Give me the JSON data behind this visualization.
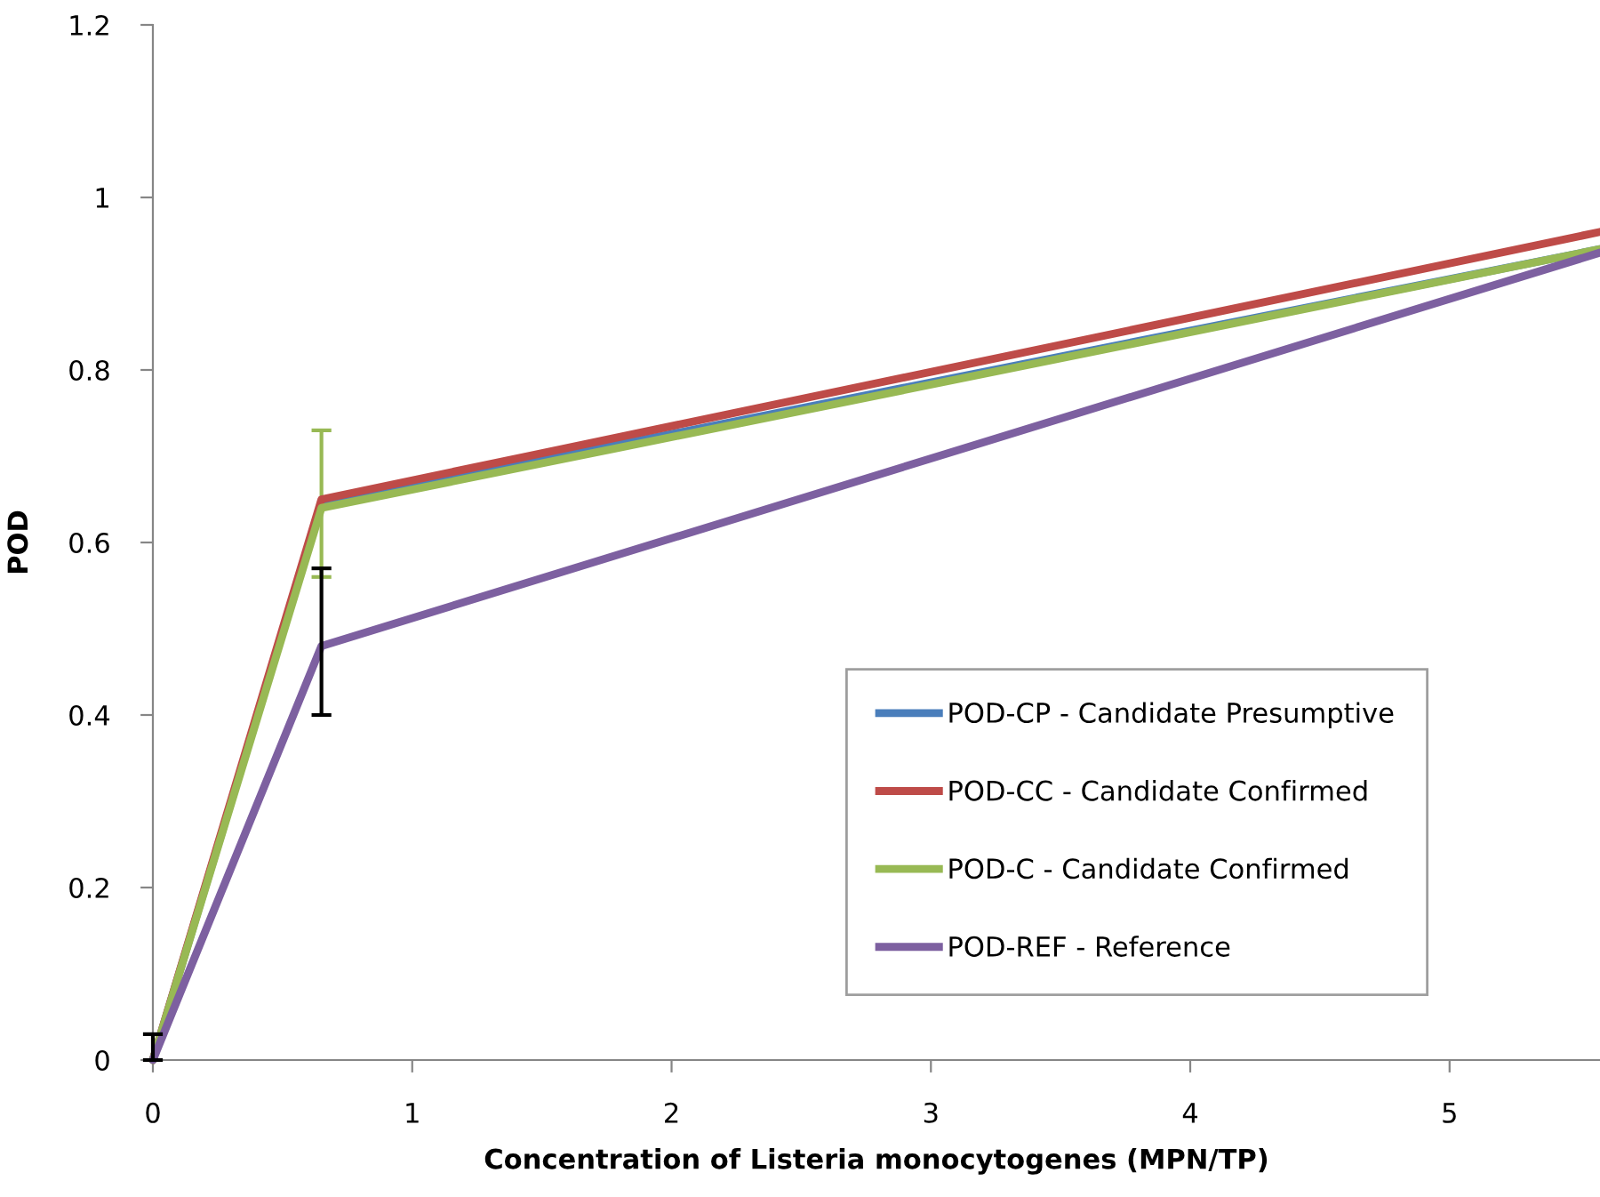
{
  "chart_data": {
    "type": "line",
    "xlabel": "Concentration of Listeria monocytogenes (MPN/TP)",
    "ylabel": "POD",
    "x": [
      0,
      0.65,
      5.58
    ],
    "series": [
      {
        "name": "POD-CP - Candidate Presumptive",
        "color": "#4a7ebb",
        "values": [
          0,
          0.645,
          0.94
        ]
      },
      {
        "name": "POD-CC - Candidate Confirmed",
        "color": "#be4b48",
        "values": [
          0,
          0.65,
          0.96
        ]
      },
      {
        "name": "POD-C - Candidate Confirmed",
        "color": "#98b954",
        "values": [
          0,
          0.64,
          0.94
        ],
        "errors": [
          null,
          [
            0.56,
            0.73
          ],
          null
        ]
      },
      {
        "name": "POD-REF - Reference",
        "color": "#7d60a0",
        "values": [
          0,
          0.48,
          0.936
        ],
        "errors": [
          [
            0,
            0.03
          ],
          [
            0.4,
            0.57
          ],
          null
        ]
      }
    ],
    "xlim": [
      0,
      5.58
    ],
    "ylim": [
      0,
      1.2
    ],
    "xticks": [
      0,
      1,
      2,
      3,
      4,
      5
    ],
    "yticks": [
      0,
      0.2,
      0.4,
      0.6,
      0.8,
      1,
      1.2
    ],
    "grid": false,
    "legend": "bottom right",
    "marker": "none",
    "line_style": "solid"
  }
}
